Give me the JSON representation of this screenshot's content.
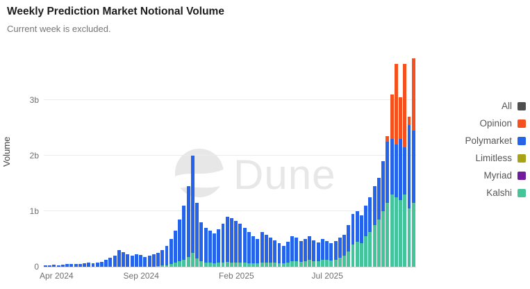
{
  "header": {
    "title": "Weekly Prediction Market Notional Volume",
    "subtitle": "Current week is excluded."
  },
  "watermark": {
    "text": "Dune"
  },
  "legend": {
    "items": [
      {
        "label": "All",
        "color": "#4f4f4f"
      },
      {
        "label": "Opinion",
        "color": "#f4511e"
      },
      {
        "label": "Polymarket",
        "color": "#2563eb"
      },
      {
        "label": "Limitless",
        "color": "#a8a216"
      },
      {
        "label": "Myriad",
        "color": "#6f1d9c"
      },
      {
        "label": "Kalshi",
        "color": "#45c49b"
      }
    ]
  },
  "chart_data": {
    "type": "bar",
    "stacked": true,
    "title": "Weekly Prediction Market Notional Volume",
    "subtitle": "Current week is excluded.",
    "xlabel": "",
    "ylabel": "Volume",
    "unit": "billions (notional volume)",
    "ylim": [
      0,
      3.9
    ],
    "grid": true,
    "legend_position": "right",
    "n_bars": 86,
    "y_ticks": [
      {
        "value": 0,
        "label": "0"
      },
      {
        "value": 1,
        "label": "1b"
      },
      {
        "value": 2,
        "label": "2b"
      },
      {
        "value": 3,
        "label": "3b"
      }
    ],
    "x_ticks": [
      {
        "index": 0,
        "label": "Apr 2024"
      },
      {
        "index": 22,
        "label": "Sep 2024"
      },
      {
        "index": 44,
        "label": "Feb 2025"
      },
      {
        "index": 65,
        "label": "Jul 2025"
      }
    ],
    "series": [
      {
        "name": "Kalshi",
        "color": "#45c49b",
        "values": [
          0,
          0,
          0,
          0,
          0,
          0,
          0,
          0,
          0,
          0,
          0,
          0,
          0,
          0,
          0,
          0,
          0,
          0,
          0,
          0,
          0,
          0,
          0,
          0,
          0,
          0,
          0.01,
          0.02,
          0.03,
          0.05,
          0.07,
          0.1,
          0.13,
          0.18,
          0.25,
          0.15,
          0.1,
          0.08,
          0.07,
          0.06,
          0.07,
          0.08,
          0.09,
          0.08,
          0.08,
          0.08,
          0.07,
          0.06,
          0.06,
          0.06,
          0.08,
          0.08,
          0.07,
          0.07,
          0.06,
          0.06,
          0.08,
          0.1,
          0.1,
          0.09,
          0.1,
          0.12,
          0.1,
          0.1,
          0.12,
          0.12,
          0.11,
          0.13,
          0.16,
          0.2,
          0.28,
          0.4,
          0.45,
          0.42,
          0.55,
          0.62,
          0.75,
          0.85,
          1.0,
          1.15,
          1.3,
          1.25,
          1.2,
          1.3,
          1.05,
          1.15
        ]
      },
      {
        "name": "Myriad",
        "color": "#6f1d9c",
        "values": [
          0,
          0,
          0,
          0,
          0,
          0,
          0,
          0,
          0,
          0,
          0,
          0,
          0,
          0,
          0,
          0,
          0,
          0,
          0,
          0,
          0,
          0,
          0,
          0,
          0,
          0,
          0,
          0,
          0,
          0,
          0,
          0,
          0,
          0,
          0,
          0,
          0,
          0,
          0,
          0,
          0,
          0,
          0,
          0,
          0,
          0,
          0,
          0,
          0,
          0,
          0,
          0,
          0,
          0,
          0,
          0,
          0,
          0,
          0,
          0,
          0,
          0,
          0,
          0,
          0,
          0,
          0,
          0,
          0,
          0,
          0,
          0,
          0,
          0,
          0,
          0,
          0,
          0,
          0,
          0,
          0,
          0,
          0,
          0,
          0,
          0
        ]
      },
      {
        "name": "Limitless",
        "color": "#a8a216",
        "values": [
          0,
          0,
          0,
          0,
          0,
          0,
          0,
          0,
          0,
          0,
          0,
          0,
          0,
          0,
          0,
          0,
          0,
          0,
          0,
          0,
          0,
          0,
          0,
          0,
          0,
          0,
          0,
          0,
          0,
          0,
          0,
          0,
          0,
          0,
          0,
          0,
          0,
          0,
          0,
          0,
          0,
          0,
          0,
          0,
          0,
          0,
          0,
          0,
          0,
          0,
          0,
          0,
          0,
          0,
          0,
          0,
          0,
          0,
          0,
          0,
          0,
          0,
          0,
          0,
          0,
          0,
          0,
          0,
          0,
          0,
          0,
          0,
          0,
          0,
          0,
          0,
          0,
          0,
          0,
          0,
          0,
          0,
          0,
          0,
          0,
          0
        ]
      },
      {
        "name": "Polymarket",
        "color": "#2563eb",
        "values": [
          0.025,
          0.03,
          0.035,
          0.03,
          0.04,
          0.045,
          0.05,
          0.045,
          0.05,
          0.06,
          0.07,
          0.06,
          0.08,
          0.09,
          0.12,
          0.16,
          0.2,
          0.3,
          0.26,
          0.22,
          0.2,
          0.22,
          0.21,
          0.18,
          0.2,
          0.22,
          0.24,
          0.28,
          0.35,
          0.45,
          0.58,
          0.75,
          0.97,
          1.27,
          1.75,
          1.0,
          0.7,
          0.62,
          0.58,
          0.54,
          0.61,
          0.7,
          0.81,
          0.8,
          0.74,
          0.7,
          0.63,
          0.56,
          0.49,
          0.44,
          0.54,
          0.5,
          0.45,
          0.41,
          0.36,
          0.32,
          0.37,
          0.45,
          0.42,
          0.37,
          0.4,
          0.43,
          0.38,
          0.34,
          0.38,
          0.34,
          0.31,
          0.33,
          0.36,
          0.38,
          0.47,
          0.55,
          0.55,
          0.5,
          0.55,
          0.63,
          0.7,
          0.75,
          0.9,
          1.1,
          1.0,
          0.95,
          1.1,
          0.85,
          1.5,
          1.3
        ]
      },
      {
        "name": "Opinion",
        "color": "#f4511e",
        "values": [
          0,
          0,
          0,
          0,
          0,
          0,
          0,
          0,
          0,
          0,
          0,
          0,
          0,
          0,
          0,
          0,
          0,
          0,
          0,
          0,
          0,
          0,
          0,
          0,
          0,
          0,
          0,
          0,
          0,
          0,
          0,
          0,
          0,
          0,
          0,
          0,
          0,
          0,
          0,
          0,
          0,
          0,
          0,
          0,
          0,
          0,
          0,
          0,
          0,
          0,
          0,
          0,
          0,
          0,
          0,
          0,
          0,
          0,
          0,
          0,
          0,
          0,
          0,
          0,
          0,
          0,
          0,
          0,
          0,
          0,
          0,
          0,
          0,
          0,
          0,
          0,
          0,
          0,
          0,
          0.1,
          0.8,
          1.45,
          0.75,
          1.5,
          0.15,
          1.3
        ]
      }
    ]
  }
}
